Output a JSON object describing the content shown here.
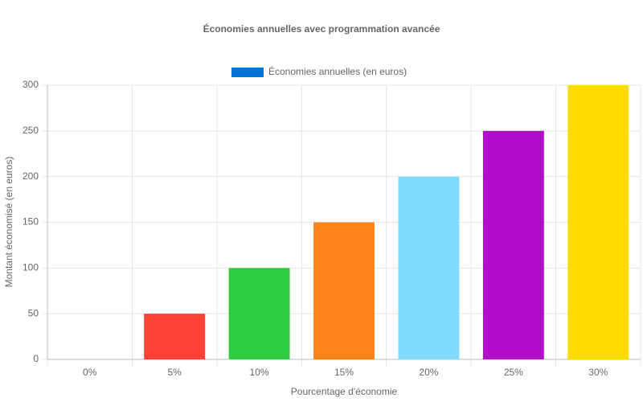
{
  "chart_data": {
    "type": "bar",
    "title": "Économies annuelles avec programmation avancée",
    "x_label": "Pourcentage d'économie",
    "y_label": "Montant économisé (en euros)",
    "categories": [
      "0%",
      "5%",
      "10%",
      "15%",
      "20%",
      "25%",
      "30%"
    ],
    "series": [
      {
        "name": "Économies annuelles (en euros)",
        "color": "#0074d9",
        "values": [
          0,
          50,
          100,
          150,
          200,
          250,
          300
        ],
        "bar_colors": [
          "#0074d9",
          "#ff4136",
          "#2ecc40",
          "#ff851b",
          "#7fdbff",
          "#b10dc9",
          "#ffdc00"
        ]
      }
    ],
    "ylim": [
      0,
      300
    ],
    "yticks": [
      0,
      50,
      100,
      150,
      200,
      250,
      300
    ],
    "grid": true,
    "legend": "top"
  }
}
